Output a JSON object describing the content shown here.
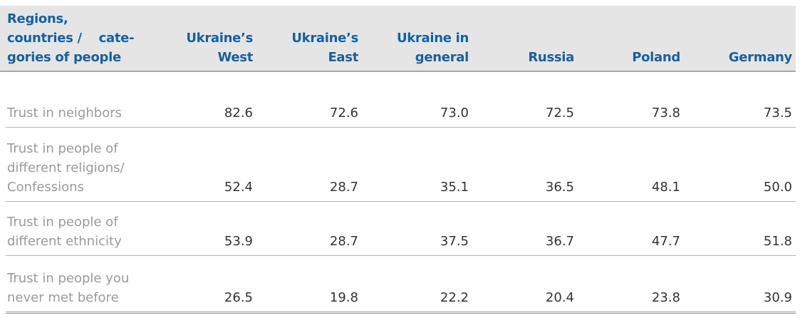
{
  "table": {
    "header": [
      [
        "Regions,",
        "countries /    cate-",
        "gories of people"
      ],
      [
        "Ukraine’s",
        "West"
      ],
      [
        "Ukraine’s",
        "East"
      ],
      [
        "Ukraine in",
        "general"
      ],
      [
        "Russia"
      ],
      [
        "Poland"
      ],
      [
        "Germany"
      ]
    ],
    "rows": [
      {
        "label": [
          "Trust in neighbors"
        ],
        "values": [
          "82.6",
          "72.6",
          "73.0",
          "72.5",
          "73.8",
          "73.5"
        ]
      },
      {
        "label": [
          "Trust in people of",
          "different religions/",
          "Confessions"
        ],
        "values": [
          "52.4",
          "28.7",
          "35.1",
          "36.5",
          "48.1",
          "50.0"
        ]
      },
      {
        "label": [
          "Trust in people of",
          "different ethnicity"
        ],
        "values": [
          "53.9",
          "28.7",
          "37.5",
          "36.7",
          "47.7",
          "51.8"
        ]
      },
      {
        "label": [
          "Trust in people you",
          "never met before"
        ],
        "values": [
          "26.5",
          "19.8",
          "22.2",
          "20.4",
          "23.8",
          "30.9"
        ]
      }
    ]
  }
}
